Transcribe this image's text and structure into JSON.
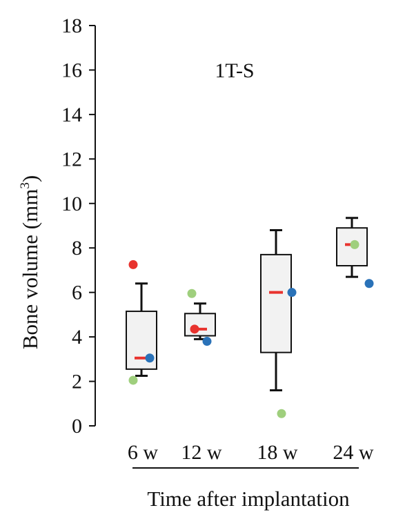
{
  "chart_data": {
    "type": "box",
    "annotation": "1T-S",
    "ylabel": "Bone volume (mm³)",
    "ylabel_main": "Bone volume (mm",
    "ylabel_sup": "3",
    "ylabel_close": ")",
    "xlabel": "Time after implantation",
    "ylim": [
      0,
      18
    ],
    "yticks": [
      0,
      2,
      4,
      6,
      8,
      10,
      12,
      14,
      16,
      18
    ],
    "categories": [
      "6 w",
      "12 w",
      "18 w",
      "24 w"
    ],
    "boxes": [
      {
        "whisker_low": 2.25,
        "q1": 2.55,
        "median": 3.05,
        "q3": 5.15,
        "whisker_high": 6.4
      },
      {
        "whisker_low": 3.9,
        "q1": 4.05,
        "median": 4.35,
        "q3": 5.05,
        "whisker_high": 5.5
      },
      {
        "whisker_low": 1.6,
        "q1": 3.3,
        "median": 6.0,
        "q3": 7.7,
        "whisker_high": 8.8
      },
      {
        "whisker_low": 6.7,
        "q1": 7.2,
        "median": 8.15,
        "q3": 8.9,
        "whisker_high": 9.35
      }
    ],
    "points": [
      {
        "category": "6 w",
        "color": "red",
        "value": 7.25
      },
      {
        "category": "6 w",
        "color": "blue",
        "value": 3.05
      },
      {
        "category": "6 w",
        "color": "green",
        "value": 2.05
      },
      {
        "category": "12 w",
        "color": "green",
        "value": 5.95
      },
      {
        "category": "12 w",
        "color": "red",
        "value": 4.35
      },
      {
        "category": "12 w",
        "color": "blue",
        "value": 3.8
      },
      {
        "category": "18 w",
        "color": "blue",
        "value": 6.0
      },
      {
        "category": "18 w",
        "color": "green",
        "value": 0.55
      },
      {
        "category": "24 w",
        "color": "green",
        "value": 8.15
      },
      {
        "category": "24 w",
        "color": "blue",
        "value": 6.4
      }
    ],
    "colors": {
      "red": "#e8332e",
      "blue": "#2a72b8",
      "green": "#9fcf7d",
      "median": "#e8332e",
      "box_fill": "#f2f2f2",
      "axis": "#111111"
    },
    "grid": false,
    "legend": "none"
  }
}
